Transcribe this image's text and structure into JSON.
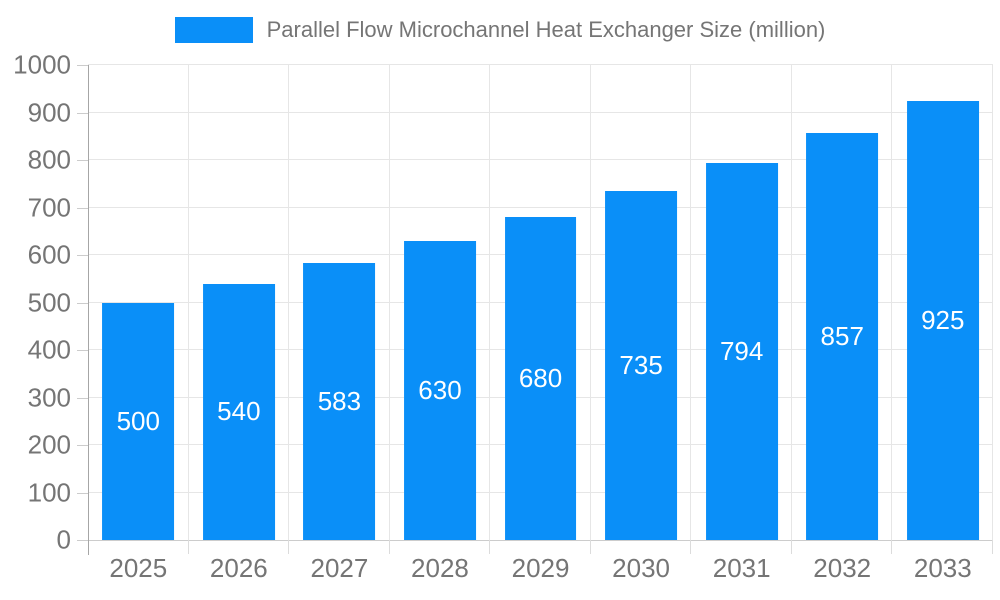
{
  "chart_data": {
    "type": "bar",
    "title": "Parallel Flow Microchannel Heat Exchanger Size (million)",
    "categories": [
      "2025",
      "2026",
      "2027",
      "2028",
      "2029",
      "2030",
      "2031",
      "2032",
      "2033"
    ],
    "values": [
      500,
      540,
      583,
      630,
      680,
      735,
      794,
      857,
      925
    ],
    "series": [
      {
        "name": "Parallel Flow Microchannel Heat Exchanger Size (million)",
        "values": [
          500,
          540,
          583,
          630,
          680,
          735,
          794,
          857,
          925
        ]
      }
    ],
    "xlabel": "",
    "ylabel": "",
    "ylim": [
      0,
      1000
    ],
    "ytick_step": 100,
    "grid": true,
    "legend_position": "top",
    "value_labels": "inside-center",
    "colors": {
      "bar": "#0a8ff8",
      "value_label": "#ffffff",
      "axis_text": "#757575",
      "gridline": "#e6e6e6",
      "axis_line": "#a6a6a6",
      "tick": "#cccccc",
      "background": "#ffffff"
    }
  }
}
